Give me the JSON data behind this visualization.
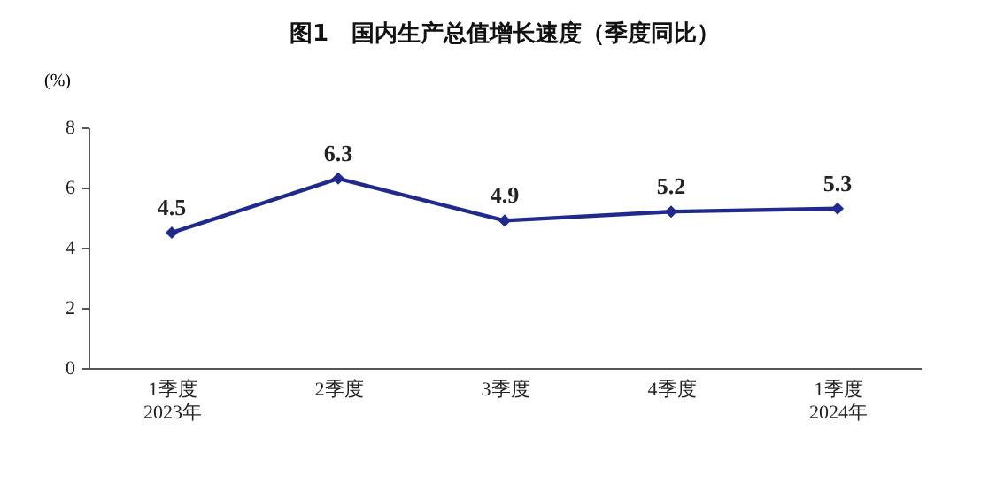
{
  "chart_data": {
    "type": "line",
    "title": "图1　国内生产总值增长速度（季度同比）",
    "ylabel": "(%)",
    "categories": [
      "1季度\n2023年",
      "2季度",
      "3季度",
      "4季度",
      "1季度\n2024年"
    ],
    "series": [
      {
        "color": "#1f2a8c",
        "values": [
          4.5,
          6.3,
          4.9,
          5.2,
          5.3
        ]
      }
    ],
    "ylim": [
      0,
      8
    ],
    "yticks": [
      0,
      2,
      4,
      6,
      8
    ],
    "grid": false,
    "marker": "diamond",
    "line_style": "solid",
    "data_labels": true,
    "legend": false
  }
}
